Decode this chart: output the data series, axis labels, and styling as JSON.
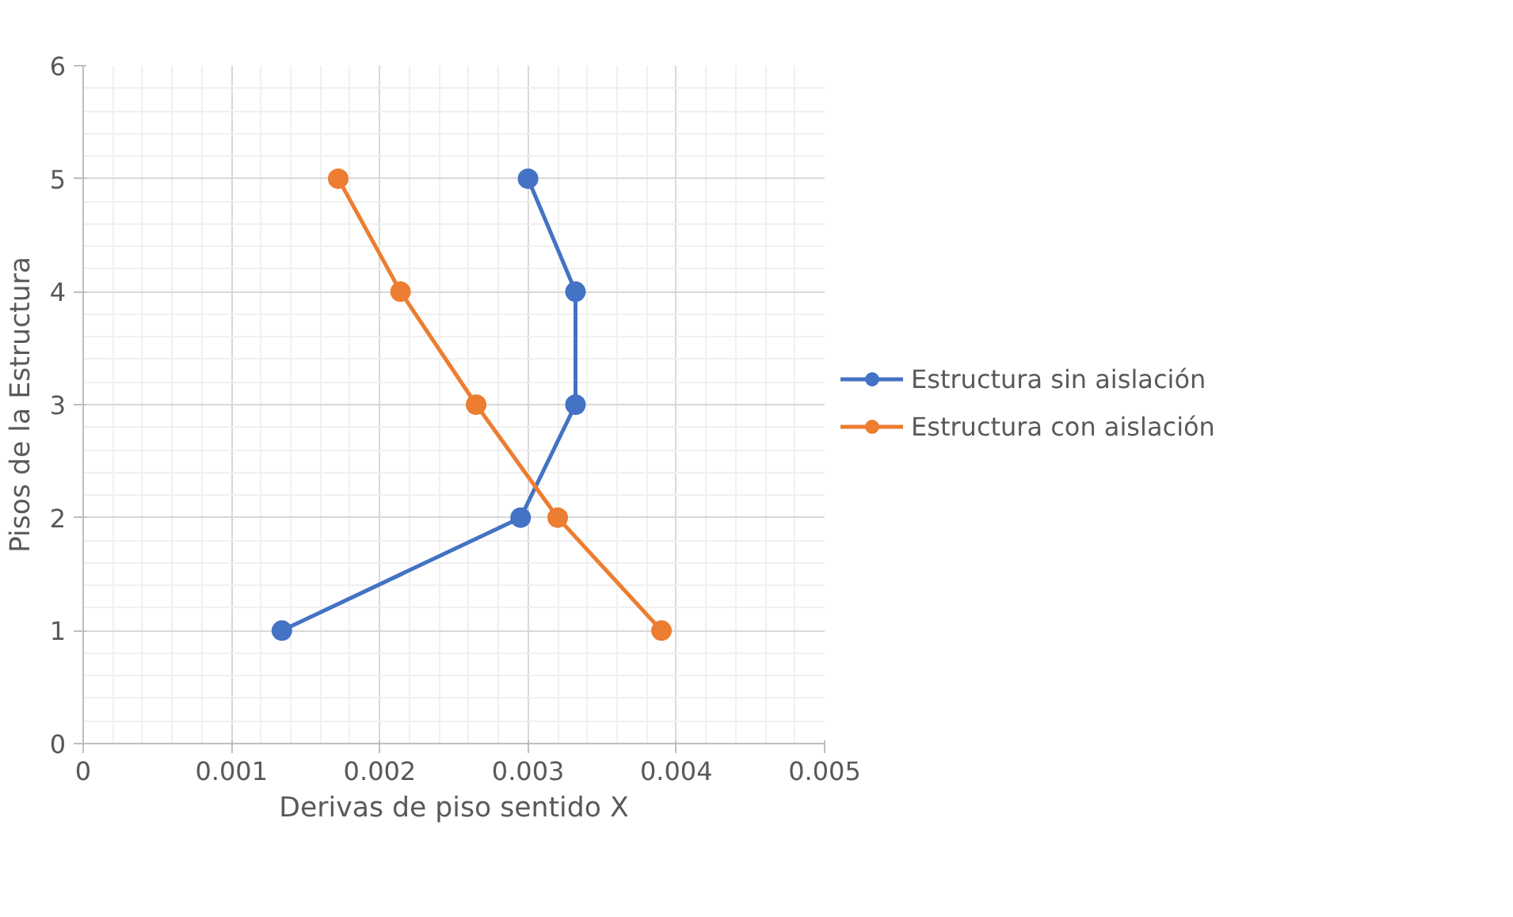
{
  "chart_data": {
    "type": "line",
    "xlabel": "Derivas de piso sentido X",
    "ylabel": "Pisos de la Estructura",
    "series": [
      {
        "name": "Estructura sin aislación",
        "color": "#4472c4",
        "x": [
          0.00134,
          0.00295,
          0.00332,
          0.00332,
          0.003
        ],
        "values": [
          1,
          2,
          3,
          4,
          5
        ]
      },
      {
        "name": "Estructura con aislación",
        "color": "#ed7d31",
        "x": [
          0.0039,
          0.0032,
          0.00265,
          0.00214,
          0.00172
        ],
        "values": [
          1,
          2,
          3,
          4,
          5
        ]
      }
    ],
    "xlim": [
      0,
      0.005
    ],
    "xticks": [
      0,
      0.001,
      0.002,
      0.003,
      0.004,
      0.005
    ],
    "ylim": [
      0,
      6
    ],
    "yticks": [
      0,
      1,
      2,
      3,
      4,
      5,
      6
    ],
    "grid": true,
    "legend": "right",
    "marker": "circle",
    "line_style": "solid"
  }
}
